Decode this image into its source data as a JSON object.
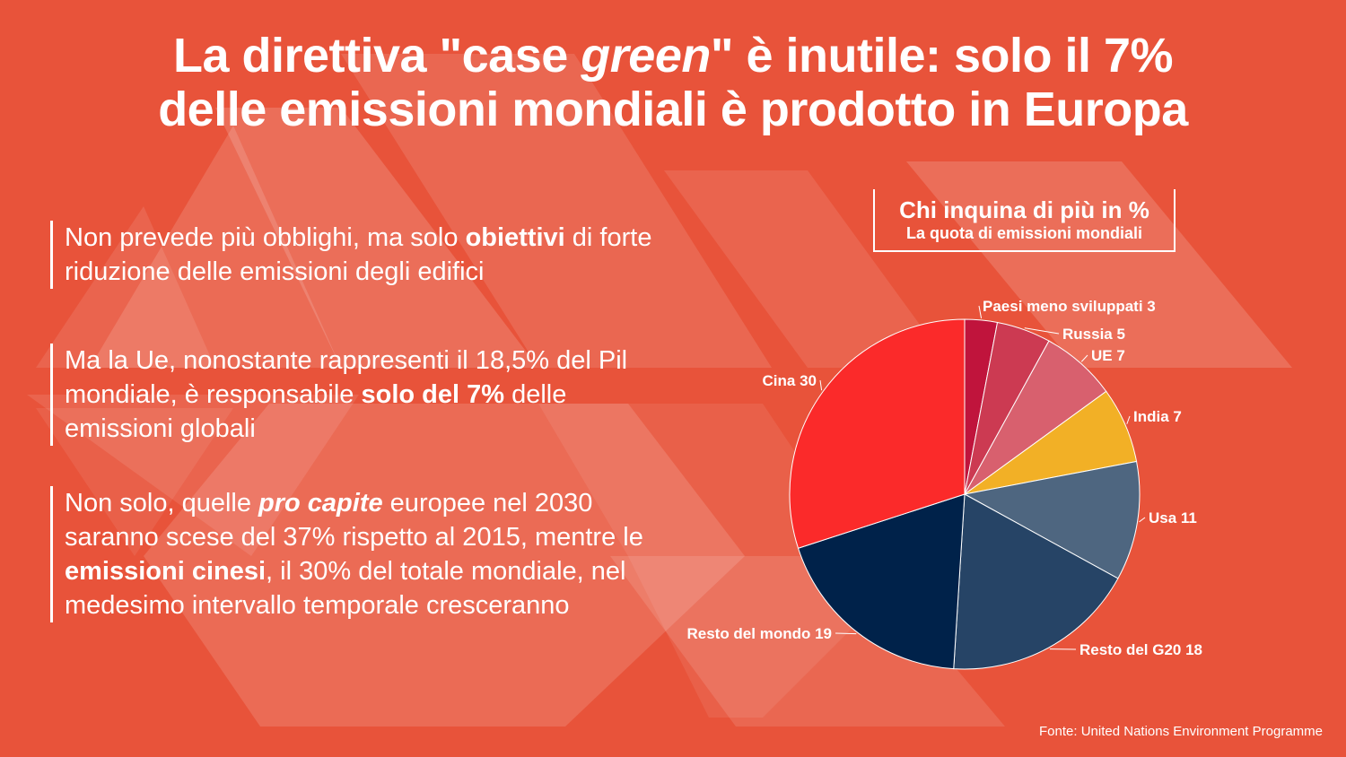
{
  "title": {
    "line1_a": "La direttiva \"case ",
    "line1_em": "green",
    "line1_b": "\" è inutile: solo il 7%",
    "line2": "delle emissioni mondiali è prodotto in Europa"
  },
  "points": [
    {
      "a": "Non prevede più obblighi, ma solo ",
      "b": "obiettivi",
      "c": " di forte riduzione delle emissioni degli edifici"
    },
    {
      "a": "Ma la Ue, nonostante rappresenti il 18,5% del Pil mondiale, è responsabile ",
      "b": "solo del 7%",
      "c": " delle emissioni globali"
    },
    {
      "a": "Non solo, quelle ",
      "b": "pro capite",
      "c": " europee nel 2030 saranno scese del 37% rispetto al 2015, mentre le ",
      "d": "emissioni cinesi",
      "e": ", il 30% del totale mondiale, nel medesimo intervallo temporale cresceranno"
    }
  ],
  "colors": {
    "background": "#e8533a",
    "accent_red": "#fb2a2a",
    "navy": "#00224a"
  },
  "chart_data": {
    "type": "pie",
    "title": "Chi inquina di più in %",
    "subtitle": "La quota di emissioni mondiali",
    "slices": [
      {
        "label": "Paesi meno sviluppati",
        "value": 3,
        "color": "#c0143c"
      },
      {
        "label": "Russia",
        "value": 5,
        "color": "#cc3a52"
      },
      {
        "label": "UE",
        "value": 7,
        "color": "#d8606e"
      },
      {
        "label": "India",
        "value": 7,
        "color": "#f2b026"
      },
      {
        "label": "Usa",
        "value": 11,
        "color": "#4e6680"
      },
      {
        "label": "Resto del G20",
        "value": 18,
        "color": "#264466"
      },
      {
        "label": "Resto del mondo",
        "value": 19,
        "color": "#00224a"
      },
      {
        "label": "Cina",
        "value": 30,
        "color": "#fb2a2a"
      }
    ]
  },
  "source": "Fonte: United Nations Environment Programme"
}
